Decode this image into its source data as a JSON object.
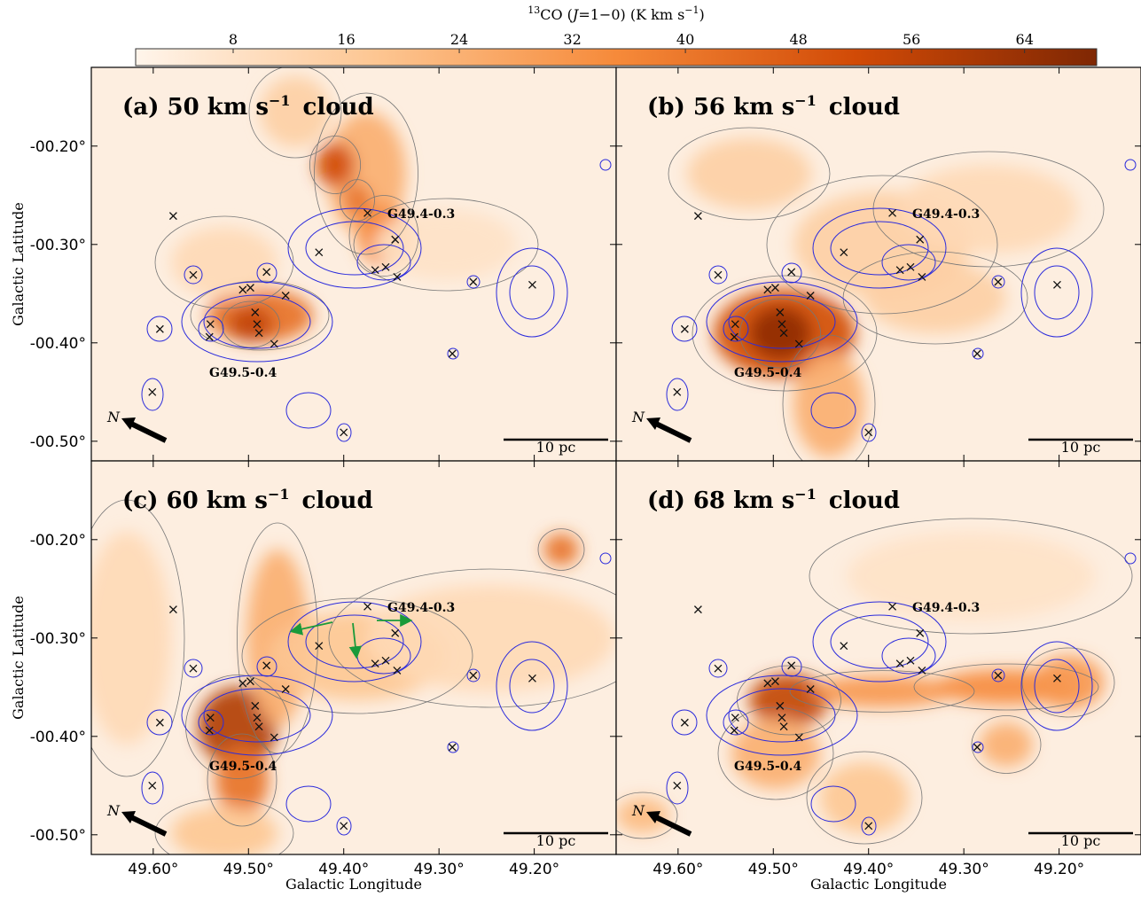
{
  "colorbar": {
    "label": [
      {
        "text": "13",
        "sup": true
      },
      {
        "text": "CO ("
      },
      {
        "text": "J",
        "italic": true
      },
      {
        "text": "=1−0) (K km s"
      },
      {
        "text": "−1",
        "sup": true
      },
      {
        "text": ")"
      }
    ],
    "lim": [
      1.1,
      69.1
    ],
    "ticks": [
      8,
      16,
      24,
      32,
      40,
      48,
      56,
      64
    ]
  },
  "axes": {
    "xlabel": "Galactic Longitude",
    "ylabel": "Galactic Latitude",
    "xlim": [
      49.665,
      49.114
    ],
    "ylim": [
      -0.52,
      -0.12
    ],
    "xticks": [
      {
        "value": 49.6,
        "label": "49.60°"
      },
      {
        "value": 49.5,
        "label": "49.50°"
      },
      {
        "value": 49.4,
        "label": "49.40°"
      },
      {
        "value": 49.3,
        "label": "49.30°"
      },
      {
        "value": 49.2,
        "label": "49.20°"
      }
    ],
    "yticks": [
      {
        "value": -0.2,
        "label": "-00.20°"
      },
      {
        "value": -0.3,
        "label": "-00.30°"
      },
      {
        "value": -0.4,
        "label": "-00.40°"
      },
      {
        "value": -0.5,
        "label": "-00.50°"
      }
    ]
  },
  "panels": [
    {
      "title": {
        "prefix": "(a) 50 km s",
        "sup": "−1",
        "suffix": "cloud"
      }
    },
    {
      "title": {
        "prefix": "(b) 56 km s",
        "sup": "−1",
        "suffix": "cloud"
      }
    },
    {
      "title": {
        "prefix": "(c) 60 km s",
        "sup": "−1",
        "suffix": "cloud"
      }
    },
    {
      "title": {
        "prefix": "(d) 68 km s",
        "sup": "−1",
        "suffix": "cloud"
      }
    }
  ],
  "regions": [
    "G49.4-0.3",
    "G49.5-0.4"
  ],
  "north": "N",
  "scalebar": "10 pc",
  "sources": [
    [
      49.579,
      -0.271
    ],
    [
      49.375,
      -0.268
    ],
    [
      49.426,
      -0.308
    ],
    [
      49.367,
      -0.326
    ],
    [
      49.356,
      -0.323
    ],
    [
      49.346,
      -0.295
    ],
    [
      49.344,
      -0.333
    ],
    [
      49.558,
      -0.331
    ],
    [
      49.481,
      -0.328
    ],
    [
      49.506,
      -0.346
    ],
    [
      49.498,
      -0.344
    ],
    [
      49.461,
      -0.352
    ],
    [
      49.54,
      -0.381
    ],
    [
      49.593,
      -0.386
    ],
    [
      49.541,
      -0.394
    ],
    [
      49.493,
      -0.369
    ],
    [
      49.491,
      -0.381
    ],
    [
      49.489,
      -0.39
    ],
    [
      49.473,
      -0.401
    ],
    [
      49.264,
      -0.338
    ],
    [
      49.202,
      -0.341
    ],
    [
      49.286,
      -0.411
    ],
    [
      49.601,
      -0.45
    ],
    [
      49.4,
      -0.491
    ]
  ]
}
